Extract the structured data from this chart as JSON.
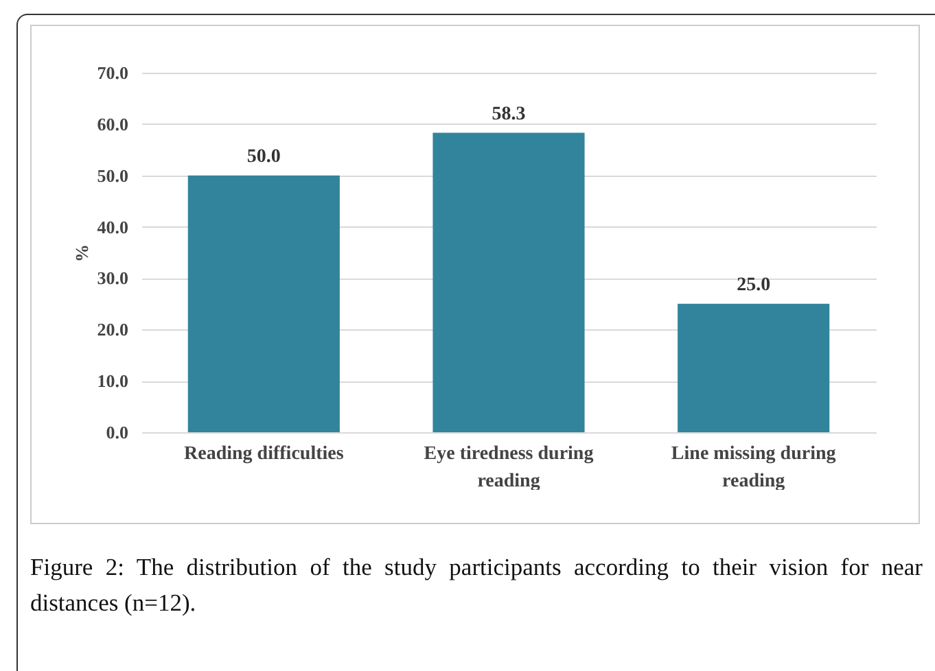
{
  "chart_data": {
    "type": "bar",
    "ylabel": "%",
    "categories": [
      "Reading difficulties",
      "Eye tiredness during reading",
      "Line missing during reading"
    ],
    "values": [
      50.0,
      58.3,
      25.0
    ],
    "color": "#31849b",
    "value_labels": [
      "50.0",
      "58.3",
      "25.0"
    ],
    "ylim": [
      0,
      70
    ],
    "yticks": [
      {
        "value": 0,
        "label": "0.0"
      },
      {
        "value": 10,
        "label": "10.0"
      },
      {
        "value": 20,
        "label": "20.0"
      },
      {
        "value": 30,
        "label": "30.0"
      },
      {
        "value": 40,
        "label": "40.0"
      },
      {
        "value": 50,
        "label": "50.0"
      },
      {
        "value": 60,
        "label": "60.0"
      },
      {
        "value": 70,
        "label": "70.0"
      }
    ],
    "grid": "y",
    "annotations": [
      "Figure 2: The distribution of the study participants according to their vision for near distances (n=12)."
    ]
  }
}
